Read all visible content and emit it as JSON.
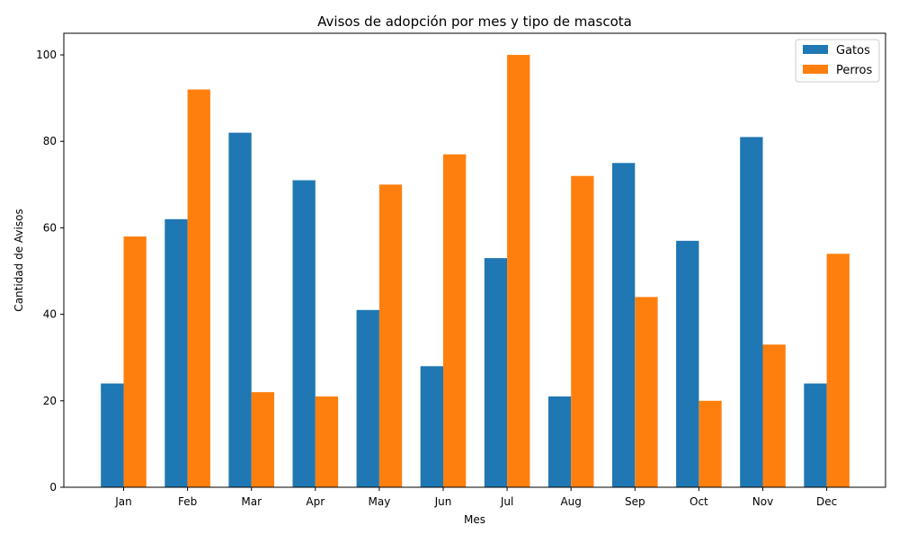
{
  "chart_data": {
    "type": "bar",
    "title": "Avisos de adopción por mes y tipo de mascota",
    "xlabel": "Mes",
    "ylabel": "Cantidad de Avisos",
    "categories": [
      "Jan",
      "Feb",
      "Mar",
      "Apr",
      "May",
      "Jun",
      "Jul",
      "Aug",
      "Sep",
      "Oct",
      "Nov",
      "Dec"
    ],
    "series": [
      {
        "name": "Gatos",
        "color": "#1f77b4",
        "values": [
          24,
          62,
          82,
          71,
          41,
          28,
          53,
          21,
          75,
          57,
          81,
          24
        ]
      },
      {
        "name": "Perros",
        "color": "#ff7f0e",
        "values": [
          58,
          92,
          22,
          21,
          70,
          77,
          100,
          72,
          44,
          20,
          33,
          54
        ]
      }
    ],
    "ylim": [
      0,
      105
    ],
    "yticks": [
      0,
      20,
      40,
      60,
      80,
      100
    ],
    "grid": false,
    "legend_position": "top-right"
  }
}
